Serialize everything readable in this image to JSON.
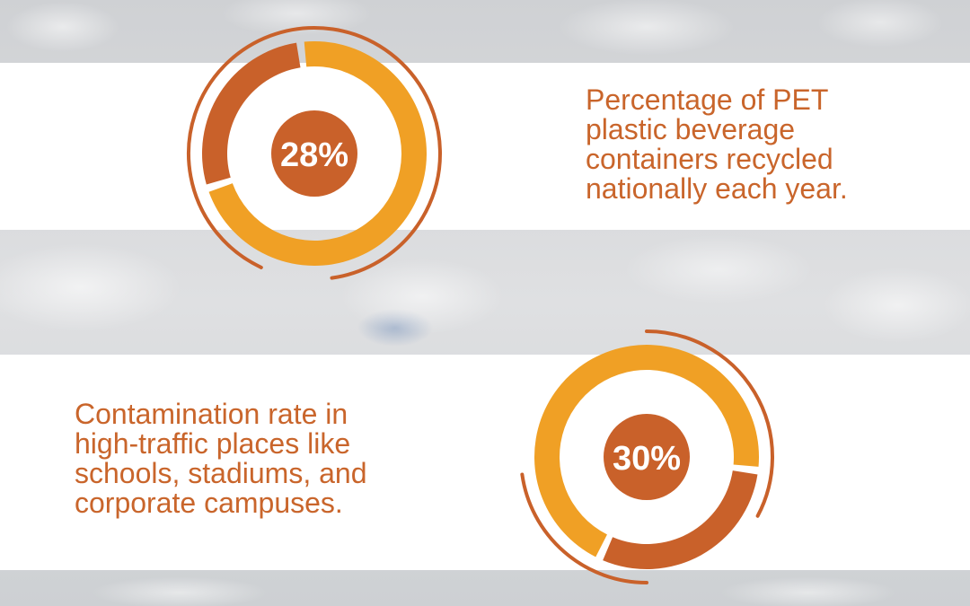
{
  "colors": {
    "dark_orange": "#c9612a",
    "light_orange": "#f0a025",
    "text_orange": "#c9652b",
    "band_white": "#ffffff"
  },
  "chart_data": [
    {
      "type": "pie",
      "style": "donut",
      "label": "28%",
      "values": [
        28,
        72
      ],
      "colors": [
        "#c9612a",
        "#f0a025"
      ],
      "description": "Percentage of PET\nplastic beverage\ncontainers recycled\nnationally each year."
    },
    {
      "type": "pie",
      "style": "donut",
      "label": "30%",
      "values": [
        30,
        70
      ],
      "colors": [
        "#c9612a",
        "#f0a025"
      ],
      "description": "Contamination rate in\nhigh-traffic places like\nschools, stadiums, and\ncorporate campuses."
    }
  ]
}
